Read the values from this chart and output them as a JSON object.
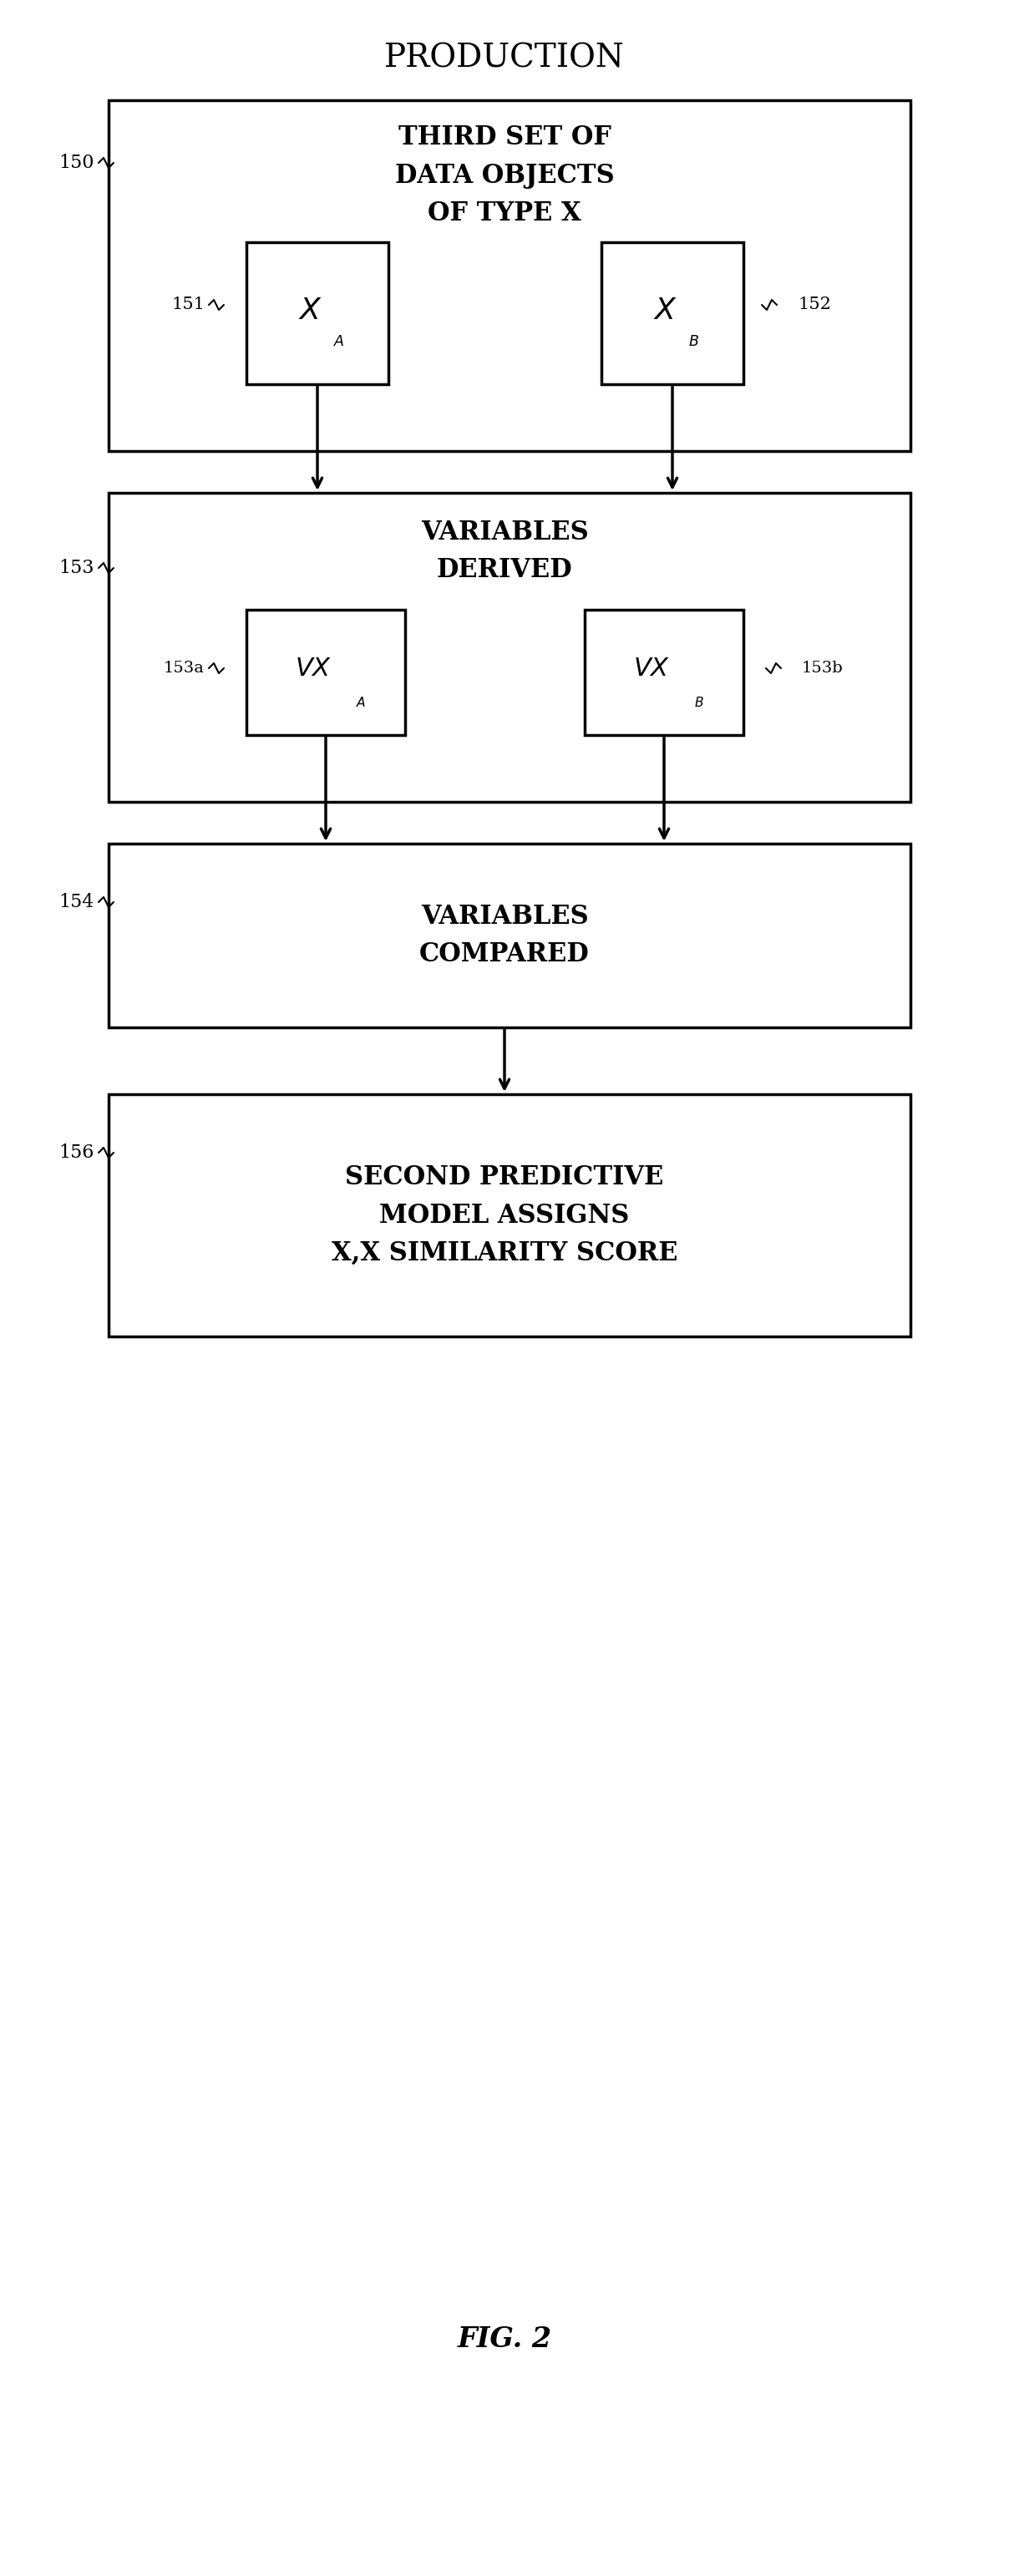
{
  "title": "PRODUCTION",
  "fig_caption": "FIG. 2",
  "background_color": "#ffffff",
  "text_color": "#000000",
  "box_150_label": "THIRD SET OF\nDATA OBJECTS\nOF TYPE X",
  "box_150_ref": "150",
  "box_151_label": "X",
  "box_151_sub": "A",
  "box_151_ref": "151",
  "box_152_label": "X",
  "box_152_sub": "B",
  "box_152_ref": "152",
  "box_153_label": "VARIABLES\nDERIVED",
  "box_153_ref": "153",
  "box_153a_label": "VX",
  "box_153a_sub": "A",
  "box_153a_ref": "153a",
  "box_153b_label": "VX",
  "box_153b_sub": "B",
  "box_153b_ref": "153b",
  "box_154_label": "VARIABLES\nCOMPARED",
  "box_154_ref": "154",
  "box_156_label": "SECOND PREDICTIVE\nMODEL ASSIGNS\nX,X SIMILARITY SCORE",
  "box_156_ref": "156"
}
